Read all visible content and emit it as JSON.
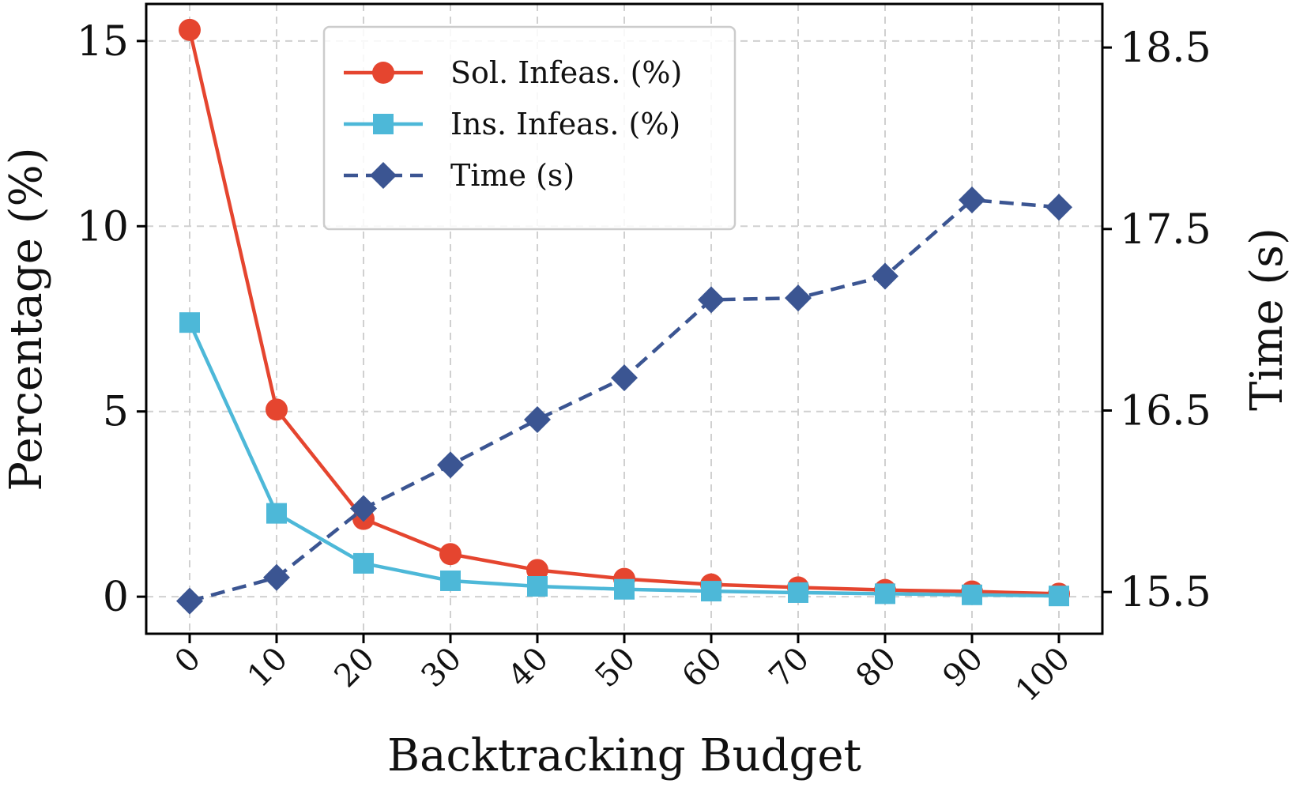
{
  "chart_data": {
    "type": "line",
    "title": "",
    "xlabel": "Backtracking Budget",
    "ylabel": "Percentage (%)",
    "y2label": "Time (s)",
    "x": [
      0,
      10,
      20,
      30,
      40,
      50,
      60,
      70,
      80,
      90,
      100
    ],
    "x_tick_labels": [
      "0",
      "10",
      "20",
      "30",
      "40",
      "50",
      "60",
      "70",
      "80",
      "90",
      "100"
    ],
    "xlim": [
      -5,
      105
    ],
    "ylim": [
      -1,
      16
    ],
    "y_ticks": [
      0,
      5,
      10,
      15
    ],
    "y_tick_labels": [
      "0",
      "5",
      "10",
      "15"
    ],
    "y2lim": [
      15.27,
      18.74
    ],
    "y2_ticks": [
      15.5,
      16.5,
      17.5,
      18.5
    ],
    "y2_tick_labels": [
      "15.5",
      "16.5",
      "17.5",
      "18.5"
    ],
    "grid": true,
    "legend_position": "top-center",
    "series": [
      {
        "name": "Sol. Infeas. (%)",
        "axis": "left",
        "color": "#e5452f",
        "marker": "circle",
        "line_style": "solid",
        "values": [
          15.3,
          5.05,
          2.1,
          1.15,
          0.72,
          0.48,
          0.33,
          0.25,
          0.18,
          0.14,
          0.08
        ]
      },
      {
        "name": "Ins. Infeas. (%)",
        "axis": "left",
        "color": "#4db8d8",
        "marker": "square",
        "line_style": "solid",
        "values": [
          7.4,
          2.25,
          0.9,
          0.43,
          0.28,
          0.2,
          0.15,
          0.11,
          0.08,
          0.05,
          0.02
        ]
      },
      {
        "name": "Time (s)",
        "axis": "right",
        "color": "#3b5592",
        "marker": "diamond",
        "line_style": "dashed",
        "values": [
          15.45,
          15.58,
          15.96,
          16.2,
          16.45,
          16.68,
          17.11,
          17.12,
          17.24,
          17.66,
          17.62
        ]
      }
    ]
  }
}
